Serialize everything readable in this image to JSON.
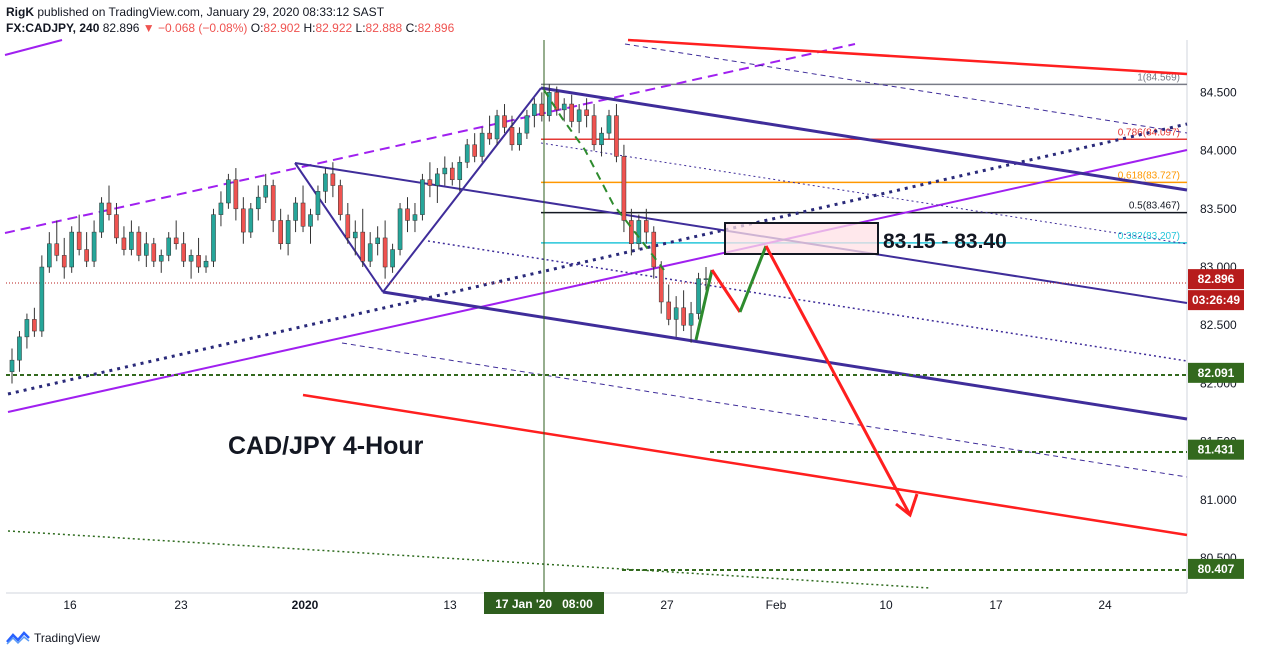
{
  "header": {
    "publisher": "RigK",
    "published_text": "published on TradingView.com, January 29, 2020 08:33:12 SAST",
    "symbol": "FX:CADJPY, 240",
    "last": "82.896",
    "change": "−0.068 (−0.08%)",
    "o_label": "O:",
    "o": "82.902",
    "h_label": "H:",
    "h": "82.922",
    "l_label": "L:",
    "l": "82.888",
    "c_label": "C:",
    "c": "82.896"
  },
  "footer": {
    "brand": "TradingView",
    "icon": "tradingview-logo-icon"
  },
  "chart_data": {
    "type": "candlestick",
    "title": "CAD/JPY 4-Hour",
    "zone_label": "83.15 - 83.40",
    "y_axis": {
      "ticks": [
        "84.500",
        "84.000",
        "83.500",
        "83.000",
        "82.500",
        "82.000",
        "81.500",
        "81.000",
        "80.500"
      ],
      "tick_values": [
        84.5,
        84.0,
        83.5,
        83.0,
        82.5,
        82.0,
        81.5,
        81.0,
        80.5
      ],
      "range": [
        80.2,
        84.95
      ]
    },
    "x_axis": {
      "ticks": [
        "16",
        "23",
        "2020",
        "13",
        "27",
        "Feb",
        "10",
        "17",
        "24"
      ],
      "cursor_label": "17 Jan '20   08:00"
    },
    "price_tags": [
      {
        "value": 82.896,
        "label": "82.896",
        "color": "#b71c1c"
      },
      {
        "value": null,
        "label": "03:26:49",
        "color": "#b71c1c"
      },
      {
        "value": 82.091,
        "label": "82.091",
        "color": "#33691e"
      },
      {
        "value": 81.431,
        "label": "81.431",
        "color": "#33691e"
      },
      {
        "value": 80.407,
        "label": "80.407",
        "color": "#33691e"
      }
    ],
    "fib_levels": [
      {
        "ratio": "1",
        "value": 84.569,
        "label": "1(84.569)",
        "color": "#787b86"
      },
      {
        "ratio": "0.786",
        "value": 84.097,
        "label": "0.786(84.097)",
        "color": "#e53935"
      },
      {
        "ratio": "0.618",
        "value": 83.727,
        "label": "0.618(83.727)",
        "color": "#ff9800"
      },
      {
        "ratio": "0.5",
        "value": 83.467,
        "label": "0.5(83.467)",
        "color": "#131722"
      },
      {
        "ratio": "0.382",
        "value": 83.207,
        "label": "0.382(83.207)",
        "color": "#26c6da"
      }
    ],
    "colors": {
      "up": "#26a69a",
      "down": "#ef5350",
      "channel": "#3f2d9a",
      "trendline": "#a020f0",
      "arrow": "#ff1f1f",
      "projection": "#2e8b2e"
    },
    "candles": [
      [
        82.1,
        82.3,
        82.0,
        82.2
      ],
      [
        82.2,
        82.45,
        82.1,
        82.4
      ],
      [
        82.4,
        82.6,
        82.3,
        82.55
      ],
      [
        82.55,
        82.65,
        82.4,
        82.45
      ],
      [
        82.45,
        83.1,
        82.4,
        83.0
      ],
      [
        83.0,
        83.3,
        82.95,
        83.2
      ],
      [
        83.2,
        83.4,
        83.05,
        83.1
      ],
      [
        83.1,
        83.25,
        82.9,
        83.0
      ],
      [
        83.0,
        83.35,
        82.95,
        83.3
      ],
      [
        83.3,
        83.45,
        83.1,
        83.15
      ],
      [
        83.15,
        83.3,
        83.0,
        83.05
      ],
      [
        83.05,
        83.4,
        83.0,
        83.3
      ],
      [
        83.3,
        83.6,
        83.25,
        83.55
      ],
      [
        83.55,
        83.7,
        83.4,
        83.45
      ],
      [
        83.45,
        83.55,
        83.2,
        83.25
      ],
      [
        83.25,
        83.35,
        83.1,
        83.15
      ],
      [
        83.15,
        83.4,
        83.1,
        83.3
      ],
      [
        83.3,
        83.35,
        83.05,
        83.1
      ],
      [
        83.1,
        83.3,
        83.0,
        83.2
      ],
      [
        83.2,
        83.25,
        83.0,
        83.05
      ],
      [
        83.05,
        83.15,
        82.95,
        83.1
      ],
      [
        83.1,
        83.3,
        83.05,
        83.25
      ],
      [
        83.25,
        83.4,
        83.15,
        83.2
      ],
      [
        83.2,
        83.3,
        83.0,
        83.05
      ],
      [
        83.05,
        83.15,
        82.9,
        83.1
      ],
      [
        83.1,
        83.25,
        82.95,
        83.0
      ],
      [
        83.0,
        83.1,
        82.95,
        83.05
      ],
      [
        83.05,
        83.5,
        83.0,
        83.45
      ],
      [
        83.45,
        83.65,
        83.35,
        83.55
      ],
      [
        83.55,
        83.8,
        83.5,
        83.75
      ],
      [
        83.75,
        83.85,
        83.4,
        83.5
      ],
      [
        83.5,
        83.6,
        83.2,
        83.3
      ],
      [
        83.3,
        83.55,
        83.25,
        83.5
      ],
      [
        83.5,
        83.7,
        83.4,
        83.6
      ],
      [
        83.6,
        83.8,
        83.55,
        83.7
      ],
      [
        83.7,
        83.75,
        83.3,
        83.4
      ],
      [
        83.4,
        83.5,
        83.15,
        83.2
      ],
      [
        83.2,
        83.45,
        83.1,
        83.4
      ],
      [
        83.4,
        83.6,
        83.3,
        83.55
      ],
      [
        83.55,
        83.7,
        83.3,
        83.35
      ],
      [
        83.35,
        83.5,
        83.2,
        83.45
      ],
      [
        83.45,
        83.7,
        83.4,
        83.65
      ],
      [
        83.65,
        83.85,
        83.55,
        83.8
      ],
      [
        83.8,
        83.9,
        83.6,
        83.7
      ],
      [
        83.7,
        83.75,
        83.4,
        83.45
      ],
      [
        83.45,
        83.55,
        83.2,
        83.25
      ],
      [
        83.25,
        83.4,
        83.1,
        83.3
      ],
      [
        83.3,
        83.5,
        83.0,
        83.05
      ],
      [
        83.05,
        83.3,
        83.0,
        83.2
      ],
      [
        83.2,
        83.35,
        83.1,
        83.25
      ],
      [
        83.25,
        83.4,
        82.9,
        83.0
      ],
      [
        83.0,
        83.2,
        82.95,
        83.15
      ],
      [
        83.15,
        83.55,
        83.1,
        83.5
      ],
      [
        83.5,
        83.6,
        83.3,
        83.4
      ],
      [
        83.4,
        83.55,
        83.3,
        83.45
      ],
      [
        83.45,
        83.8,
        83.4,
        83.75
      ],
      [
        83.75,
        83.9,
        83.6,
        83.7
      ],
      [
        83.7,
        83.85,
        83.55,
        83.8
      ],
      [
        83.8,
        83.95,
        83.7,
        83.85
      ],
      [
        83.85,
        83.9,
        83.7,
        83.75
      ],
      [
        83.75,
        83.95,
        83.65,
        83.9
      ],
      [
        83.9,
        84.1,
        83.85,
        84.05
      ],
      [
        84.05,
        84.15,
        83.9,
        83.95
      ],
      [
        83.95,
        84.2,
        83.9,
        84.15
      ],
      [
        84.15,
        84.3,
        84.05,
        84.1
      ],
      [
        84.1,
        84.35,
        84.05,
        84.3
      ],
      [
        84.3,
        84.4,
        84.15,
        84.2
      ],
      [
        84.2,
        84.3,
        84.0,
        84.05
      ],
      [
        84.05,
        84.2,
        84.0,
        84.15
      ],
      [
        84.15,
        84.35,
        84.1,
        84.3
      ],
      [
        84.3,
        84.45,
        84.2,
        84.4
      ],
      [
        84.4,
        84.5,
        84.25,
        84.3
      ],
      [
        84.3,
        84.57,
        84.25,
        84.5
      ],
      [
        84.5,
        84.55,
        84.3,
        84.35
      ],
      [
        84.35,
        84.45,
        84.25,
        84.4
      ],
      [
        84.4,
        84.48,
        84.2,
        84.25
      ],
      [
        84.25,
        84.4,
        84.15,
        84.35
      ],
      [
        84.35,
        84.45,
        84.2,
        84.3
      ],
      [
        84.3,
        84.4,
        84.0,
        84.05
      ],
      [
        84.05,
        84.2,
        83.95,
        84.15
      ],
      [
        84.15,
        84.35,
        84.1,
        84.3
      ],
      [
        84.3,
        84.4,
        83.9,
        83.95
      ],
      [
        83.95,
        84.05,
        83.3,
        83.4
      ],
      [
        83.4,
        83.5,
        83.1,
        83.2
      ],
      [
        83.2,
        83.45,
        83.15,
        83.4
      ],
      [
        83.4,
        83.5,
        83.2,
        83.3
      ],
      [
        83.3,
        83.35,
        82.9,
        83.0
      ],
      [
        83.0,
        83.05,
        82.6,
        82.7
      ],
      [
        82.7,
        82.85,
        82.5,
        82.55
      ],
      [
        82.55,
        82.75,
        82.4,
        82.65
      ],
      [
        82.65,
        82.8,
        82.45,
        82.5
      ],
      [
        82.5,
        82.7,
        82.35,
        82.6
      ],
      [
        82.6,
        82.95,
        82.55,
        82.9
      ],
      [
        82.9,
        83.0,
        82.8,
        82.9
      ]
    ]
  }
}
